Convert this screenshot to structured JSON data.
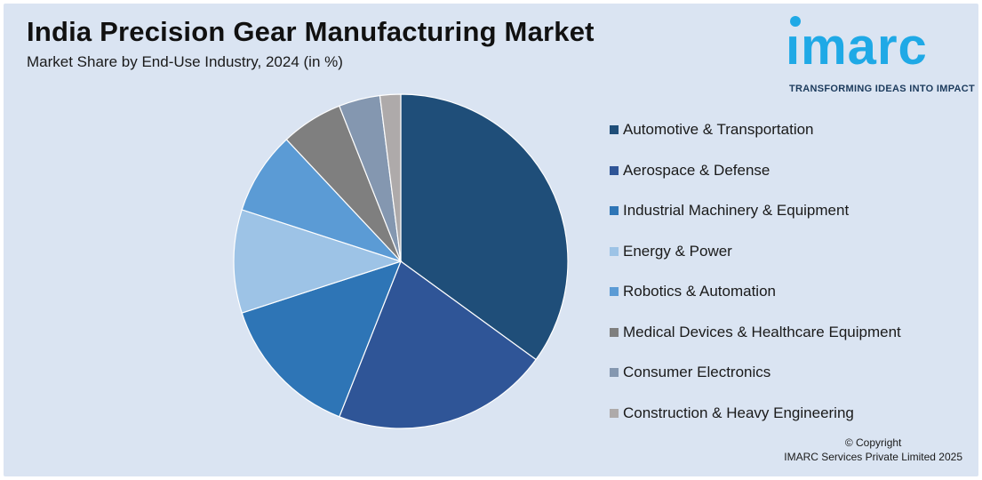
{
  "header": {
    "title": "India Precision Gear Manufacturing Market",
    "subtitle": "Market Share by End-Use Industry, 2024 (in %)"
  },
  "logo": {
    "word": "ımarc",
    "tagline": "TRANSFORMING IDEAS INTO IMPACT",
    "color": "#1fa9e6"
  },
  "footer": {
    "copyright_line1": "© Copyright",
    "copyright_line2": "IMARC Services Private Limited 2025"
  },
  "chart_data": {
    "type": "pie",
    "title": "India Precision Gear Manufacturing Market",
    "subtitle": "Market Share by End-Use Industry, 2024 (in %)",
    "legend_position": "right",
    "categories": [
      "Automotive & Transportation",
      "Aerospace & Defense",
      "Industrial Machinery & Equipment",
      "Energy & Power",
      "Robotics & Automation",
      "Medical Devices & Healthcare Equipment",
      "Consumer Electronics",
      "Construction & Heavy Engineering"
    ],
    "values": [
      35,
      21,
      14,
      10,
      8,
      6,
      4,
      2
    ],
    "colors": [
      "#1f4e79",
      "#2f5597",
      "#2e75b6",
      "#9dc3e6",
      "#5b9bd5",
      "#7f7f7f",
      "#8497b0",
      "#aeaaaa"
    ]
  }
}
